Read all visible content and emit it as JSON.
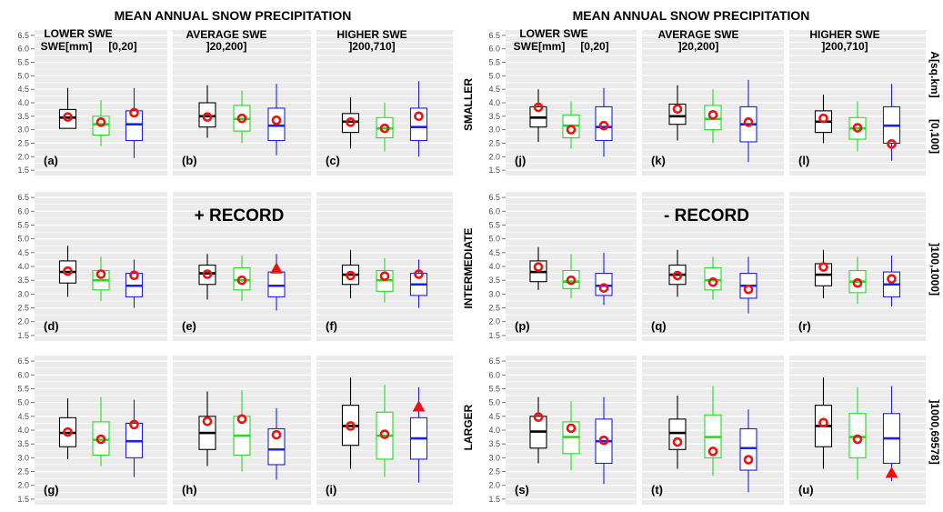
{
  "chart_data": {
    "type": "box",
    "ylim": [
      1.3,
      6.7
    ],
    "y_ticks": [
      "1.5",
      "2.0",
      "2.5",
      "3.0",
      "3.5",
      "4.0",
      "4.5",
      "5.0",
      "5.5",
      "6.0",
      "6.5"
    ],
    "grid": true,
    "series_colors": [
      "#000000",
      "#22dd22",
      "#1f1fe0"
    ],
    "mean_marker_color": "#ee1111",
    "panels": [
      {
        "group": "plus",
        "row": 0,
        "col": 0,
        "label": "(a)",
        "boxes": [
          {
            "whisker_low": 3.05,
            "q1": 3.05,
            "median": 3.45,
            "q3": 3.75,
            "whisker_high": 4.55,
            "mean": 3.47,
            "marker": "circle"
          },
          {
            "whisker_low": 2.4,
            "q1": 2.8,
            "median": 3.2,
            "q3": 3.5,
            "whisker_high": 4.1,
            "mean": 3.28,
            "marker": "circle"
          },
          {
            "whisker_low": 1.95,
            "q1": 2.6,
            "median": 3.2,
            "q3": 3.7,
            "whisker_high": 4.55,
            "mean": 3.63,
            "marker": "circle"
          }
        ]
      },
      {
        "group": "plus",
        "row": 0,
        "col": 1,
        "label": "(b)",
        "boxes": [
          {
            "whisker_low": 2.7,
            "q1": 3.1,
            "median": 3.5,
            "q3": 4.0,
            "whisker_high": 4.65,
            "mean": 3.47,
            "marker": "circle"
          },
          {
            "whisker_low": 2.5,
            "q1": 2.95,
            "median": 3.4,
            "q3": 3.9,
            "whisker_high": 4.45,
            "mean": 3.42,
            "marker": "circle"
          },
          {
            "whisker_low": 2.05,
            "q1": 2.6,
            "median": 3.15,
            "q3": 3.8,
            "whisker_high": 4.7,
            "mean": 3.35,
            "marker": "circle"
          }
        ]
      },
      {
        "group": "plus",
        "row": 0,
        "col": 2,
        "label": "(c)",
        "boxes": [
          {
            "whisker_low": 2.3,
            "q1": 2.9,
            "median": 3.3,
            "q3": 3.6,
            "whisker_high": 4.2,
            "mean": 3.28,
            "marker": "circle"
          },
          {
            "whisker_low": 2.2,
            "q1": 2.7,
            "median": 3.05,
            "q3": 3.45,
            "whisker_high": 4.0,
            "mean": 3.05,
            "marker": "circle"
          },
          {
            "whisker_low": 2.0,
            "q1": 2.6,
            "median": 3.1,
            "q3": 3.8,
            "whisker_high": 4.8,
            "mean": 3.5,
            "marker": "circle"
          }
        ]
      },
      {
        "group": "plus",
        "row": 1,
        "col": 0,
        "label": "(d)",
        "boxes": [
          {
            "whisker_low": 2.9,
            "q1": 3.4,
            "median": 3.8,
            "q3": 4.2,
            "whisker_high": 4.75,
            "mean": 3.83,
            "marker": "circle"
          },
          {
            "whisker_low": 2.75,
            "q1": 3.15,
            "median": 3.5,
            "q3": 3.85,
            "whisker_high": 4.35,
            "mean": 3.72,
            "marker": "circle"
          },
          {
            "whisker_low": 2.5,
            "q1": 2.9,
            "median": 3.3,
            "q3": 3.75,
            "whisker_high": 4.25,
            "mean": 3.68,
            "marker": "circle"
          }
        ]
      },
      {
        "group": "plus",
        "row": 1,
        "col": 1,
        "label": "(e)",
        "boxes": [
          {
            "whisker_low": 2.8,
            "q1": 3.35,
            "median": 3.75,
            "q3": 4.05,
            "whisker_high": 4.45,
            "mean": 3.72,
            "marker": "circle"
          },
          {
            "whisker_low": 2.75,
            "q1": 3.15,
            "median": 3.5,
            "q3": 3.95,
            "whisker_high": 4.4,
            "mean": 3.5,
            "marker": "circle"
          },
          {
            "whisker_low": 2.4,
            "q1": 2.9,
            "median": 3.3,
            "q3": 3.8,
            "whisker_high": 4.45,
            "mean": 3.92,
            "marker": "triangle"
          }
        ]
      },
      {
        "group": "plus",
        "row": 1,
        "col": 2,
        "label": "(f)",
        "boxes": [
          {
            "whisker_low": 2.85,
            "q1": 3.35,
            "median": 3.7,
            "q3": 4.05,
            "whisker_high": 4.6,
            "mean": 3.67,
            "marker": "circle"
          },
          {
            "whisker_low": 2.7,
            "q1": 3.1,
            "median": 3.5,
            "q3": 3.85,
            "whisker_high": 4.3,
            "mean": 3.65,
            "marker": "circle"
          },
          {
            "whisker_low": 2.5,
            "q1": 2.95,
            "median": 3.35,
            "q3": 3.75,
            "whisker_high": 4.25,
            "mean": 3.72,
            "marker": "circle"
          }
        ]
      },
      {
        "group": "plus",
        "row": 2,
        "col": 0,
        "label": "(g)",
        "boxes": [
          {
            "whisker_low": 2.95,
            "q1": 3.4,
            "median": 3.9,
            "q3": 4.45,
            "whisker_high": 5.15,
            "mean": 3.93,
            "marker": "circle"
          },
          {
            "whisker_low": 2.7,
            "q1": 3.1,
            "median": 3.65,
            "q3": 4.3,
            "whisker_high": 5.2,
            "mean": 3.67,
            "marker": "circle"
          },
          {
            "whisker_low": 2.3,
            "q1": 3.0,
            "median": 3.6,
            "q3": 4.25,
            "whisker_high": 5.1,
            "mean": 4.2,
            "marker": "circle"
          }
        ]
      },
      {
        "group": "plus",
        "row": 2,
        "col": 1,
        "label": "(h)",
        "boxes": [
          {
            "whisker_low": 2.7,
            "q1": 3.3,
            "median": 3.9,
            "q3": 4.5,
            "whisker_high": 5.4,
            "mean": 4.32,
            "marker": "circle"
          },
          {
            "whisker_low": 2.5,
            "q1": 3.1,
            "median": 3.8,
            "q3": 4.5,
            "whisker_high": 5.45,
            "mean": 4.4,
            "marker": "circle"
          },
          {
            "whisker_low": 2.2,
            "q1": 2.75,
            "median": 3.3,
            "q3": 4.05,
            "whisker_high": 4.8,
            "mean": 3.83,
            "marker": "circle"
          }
        ]
      },
      {
        "group": "plus",
        "row": 2,
        "col": 2,
        "label": "(i)",
        "boxes": [
          {
            "whisker_low": 2.6,
            "q1": 3.45,
            "median": 4.15,
            "q3": 4.9,
            "whisker_high": 5.9,
            "mean": 4.15,
            "marker": "circle"
          },
          {
            "whisker_low": 2.3,
            "q1": 2.95,
            "median": 3.8,
            "q3": 4.65,
            "whisker_high": 5.65,
            "mean": 3.85,
            "marker": "circle"
          },
          {
            "whisker_low": 2.1,
            "q1": 2.95,
            "median": 3.7,
            "q3": 4.45,
            "whisker_high": 5.55,
            "mean": 4.85,
            "marker": "triangle"
          }
        ]
      },
      {
        "group": "minus",
        "row": 0,
        "col": 0,
        "label": "(j)",
        "boxes": [
          {
            "whisker_low": 2.55,
            "q1": 3.1,
            "median": 3.45,
            "q3": 3.85,
            "whisker_high": 4.5,
            "mean": 3.83,
            "marker": "circle"
          },
          {
            "whisker_low": 2.3,
            "q1": 2.7,
            "median": 3.15,
            "q3": 3.55,
            "whisker_high": 4.05,
            "mean": 3.0,
            "marker": "circle"
          },
          {
            "whisker_low": 2.0,
            "q1": 2.6,
            "median": 3.1,
            "q3": 3.85,
            "whisker_high": 4.55,
            "mean": 3.15,
            "marker": "circle"
          }
        ]
      },
      {
        "group": "minus",
        "row": 0,
        "col": 1,
        "label": "(k)",
        "boxes": [
          {
            "whisker_low": 2.6,
            "q1": 3.2,
            "median": 3.5,
            "q3": 3.95,
            "whisker_high": 4.65,
            "mean": 3.77,
            "marker": "circle"
          },
          {
            "whisker_low": 2.5,
            "q1": 3.0,
            "median": 3.4,
            "q3": 3.9,
            "whisker_high": 4.5,
            "mean": 3.55,
            "marker": "circle"
          },
          {
            "whisker_low": 1.8,
            "q1": 2.55,
            "median": 3.2,
            "q3": 3.85,
            "whisker_high": 4.85,
            "mean": 3.28,
            "marker": "circle"
          }
        ]
      },
      {
        "group": "minus",
        "row": 0,
        "col": 2,
        "label": "(l)",
        "boxes": [
          {
            "whisker_low": 2.5,
            "q1": 2.9,
            "median": 3.3,
            "q3": 3.7,
            "whisker_high": 4.3,
            "mean": 3.42,
            "marker": "circle"
          },
          {
            "whisker_low": 2.2,
            "q1": 2.65,
            "median": 3.05,
            "q3": 3.45,
            "whisker_high": 4.05,
            "mean": 3.07,
            "marker": "circle"
          },
          {
            "whisker_low": 1.85,
            "q1": 2.5,
            "median": 3.15,
            "q3": 3.85,
            "whisker_high": 4.7,
            "mean": 2.47,
            "marker": "circle"
          }
        ]
      },
      {
        "group": "minus",
        "row": 1,
        "col": 0,
        "label": "(p)",
        "boxes": [
          {
            "whisker_low": 3.15,
            "q1": 3.45,
            "median": 3.8,
            "q3": 4.2,
            "whisker_high": 4.7,
            "mean": 3.98,
            "marker": "circle"
          },
          {
            "whisker_low": 2.85,
            "q1": 3.2,
            "median": 3.45,
            "q3": 3.85,
            "whisker_high": 4.45,
            "mean": 3.5,
            "marker": "circle"
          },
          {
            "whisker_low": 2.6,
            "q1": 2.95,
            "median": 3.3,
            "q3": 3.75,
            "whisker_high": 4.5,
            "mean": 3.22,
            "marker": "circle"
          }
        ]
      },
      {
        "group": "minus",
        "row": 1,
        "col": 1,
        "label": "(q)",
        "boxes": [
          {
            "whisker_low": 2.9,
            "q1": 3.35,
            "median": 3.7,
            "q3": 4.05,
            "whisker_high": 4.6,
            "mean": 3.67,
            "marker": "circle"
          },
          {
            "whisker_low": 2.8,
            "q1": 3.15,
            "median": 3.5,
            "q3": 3.95,
            "whisker_high": 4.35,
            "mean": 3.43,
            "marker": "circle"
          },
          {
            "whisker_low": 2.3,
            "q1": 2.85,
            "median": 3.3,
            "q3": 3.75,
            "whisker_high": 4.35,
            "mean": 3.17,
            "marker": "circle"
          }
        ]
      },
      {
        "group": "minus",
        "row": 1,
        "col": 2,
        "label": "(r)",
        "boxes": [
          {
            "whisker_low": 2.85,
            "q1": 3.3,
            "median": 3.7,
            "q3": 4.1,
            "whisker_high": 4.6,
            "mean": 3.98,
            "marker": "circle"
          },
          {
            "whisker_low": 2.65,
            "q1": 3.05,
            "median": 3.45,
            "q3": 3.85,
            "whisker_high": 4.35,
            "mean": 3.4,
            "marker": "circle"
          },
          {
            "whisker_low": 2.55,
            "q1": 2.9,
            "median": 3.35,
            "q3": 3.8,
            "whisker_high": 4.4,
            "mean": 3.55,
            "marker": "circle"
          }
        ]
      },
      {
        "group": "minus",
        "row": 2,
        "col": 0,
        "label": "(s)",
        "boxes": [
          {
            "whisker_low": 2.8,
            "q1": 3.35,
            "median": 3.95,
            "q3": 4.5,
            "whisker_high": 5.2,
            "mean": 4.47,
            "marker": "circle"
          },
          {
            "whisker_low": 2.55,
            "q1": 3.15,
            "median": 3.75,
            "q3": 4.3,
            "whisker_high": 5.05,
            "mean": 4.07,
            "marker": "circle"
          },
          {
            "whisker_low": 2.05,
            "q1": 2.8,
            "median": 3.6,
            "q3": 4.4,
            "whisker_high": 5.2,
            "mean": 3.63,
            "marker": "circle"
          }
        ]
      },
      {
        "group": "minus",
        "row": 2,
        "col": 1,
        "label": "(t)",
        "boxes": [
          {
            "whisker_low": 2.6,
            "q1": 3.3,
            "median": 3.9,
            "q3": 4.4,
            "whisker_high": 5.25,
            "mean": 3.57,
            "marker": "circle"
          },
          {
            "whisker_low": 2.35,
            "q1": 3.0,
            "median": 3.75,
            "q3": 4.55,
            "whisker_high": 5.6,
            "mean": 3.23,
            "marker": "circle"
          },
          {
            "whisker_low": 1.75,
            "q1": 2.55,
            "median": 3.35,
            "q3": 4.05,
            "whisker_high": 4.75,
            "mean": 2.93,
            "marker": "circle"
          }
        ]
      },
      {
        "group": "minus",
        "row": 2,
        "col": 2,
        "label": "(u)",
        "boxes": [
          {
            "whisker_low": 2.6,
            "q1": 3.4,
            "median": 4.15,
            "q3": 4.9,
            "whisker_high": 5.9,
            "mean": 4.27,
            "marker": "circle"
          },
          {
            "whisker_low": 2.2,
            "q1": 3.0,
            "median": 3.75,
            "q3": 4.6,
            "whisker_high": 5.55,
            "mean": 3.67,
            "marker": "circle"
          },
          {
            "whisker_low": 2.15,
            "q1": 2.8,
            "median": 3.7,
            "q3": 4.6,
            "whisker_high": 5.6,
            "mean": 2.45,
            "marker": "triangle"
          }
        ]
      }
    ]
  },
  "titles": {
    "left": "MEAN ANNUAL SNOW PRECIPITATION",
    "right": "MEAN ANNUAL SNOW PRECIPITATION"
  },
  "column_headers": {
    "left": [
      {
        "line1": "LOWER SWE",
        "line2a": "SWE[mm]",
        "line2b": "[0,20]"
      },
      {
        "line1": "AVERAGE SWE",
        "line2": "]20,200]"
      },
      {
        "line1": "HIGHER SWE",
        "line2": "]200,710]"
      }
    ],
    "right": [
      {
        "line1": "LOWER SWE",
        "line2a": "SWE[mm]",
        "line2b": "[0,20]"
      },
      {
        "line1": "AVERAGE SWE",
        "line2": "]20,200]"
      },
      {
        "line1": "HIGHER SWE",
        "line2": "]200,710]"
      }
    ]
  },
  "record_labels": {
    "plus": "+ RECORD",
    "minus": "- RECORD"
  },
  "area_row_labels": [
    "SMALLER",
    "INTERMEDIATE",
    "LARGER"
  ],
  "area_ranges": {
    "unit": "A[sq.km]",
    "row1": "[0,100]",
    "row2": "]100,1000]",
    "row3": "]1000,69578]"
  }
}
